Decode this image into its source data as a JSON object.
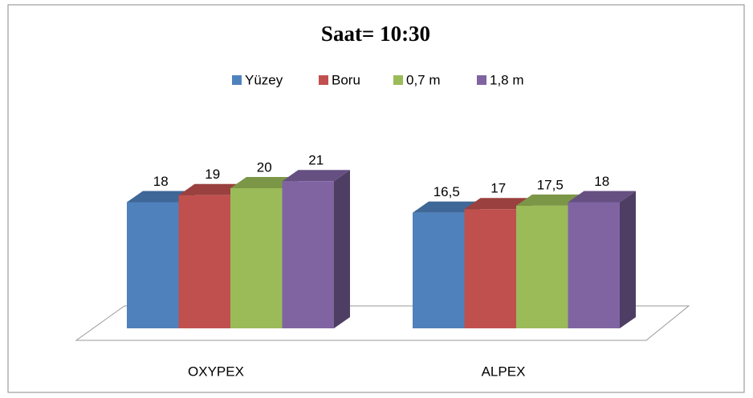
{
  "chart_data": {
    "type": "bar3d",
    "title": "Saat= 10:30",
    "categories": [
      "OXYPEX",
      "ALPEX"
    ],
    "series": [
      {
        "name": "Yüzey",
        "color": "#4f81bd",
        "values": [
          18,
          16.5
        ],
        "value_labels": [
          "18",
          "16,5"
        ]
      },
      {
        "name": "Boru",
        "color": "#c0504d",
        "values": [
          19,
          17
        ],
        "value_labels": [
          "19",
          "17"
        ]
      },
      {
        "name": "0,7 m",
        "color": "#9bbb59",
        "values": [
          20,
          17.5
        ],
        "value_labels": [
          "20",
          "17,5"
        ]
      },
      {
        "name": "1,8 m",
        "color": "#8064a2",
        "values": [
          21,
          18
        ],
        "value_labels": [
          "21",
          "18"
        ]
      }
    ]
  }
}
